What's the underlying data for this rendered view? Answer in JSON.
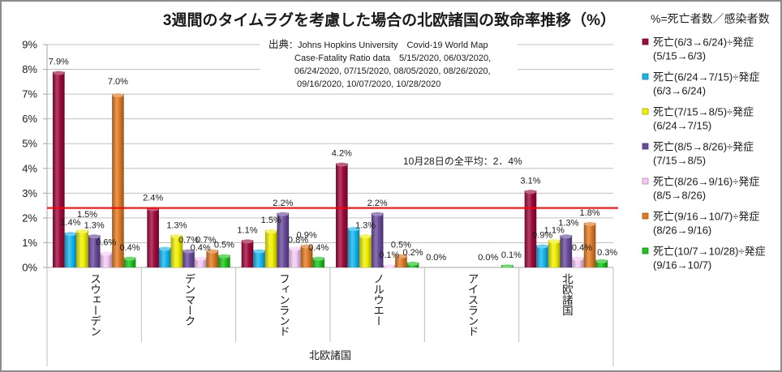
{
  "chart_data": {
    "type": "bar",
    "title": "3週間のタイムラグを考慮した場合の北欧諸国の致命率推移（%）",
    "note": "%=死亡者数／感染者数",
    "source": {
      "label": "出典",
      "lines": [
        "：Johns Hopkins University　Covid-19 World Map",
        "Case-Fatality Ratio data　5/15/2020, 06/03/2020,",
        "06/24/2020, 07/15/2020, 08/05/2020, 08/26/2020,",
        "09/16/2020, 10/07/2020, 10/28/2020"
      ]
    },
    "xlabel": "北欧諸国",
    "ylabel": "",
    "categories": [
      "スウェーデン",
      "デンマーク",
      "フィンランド",
      "ノルウエー",
      "アイスランド",
      "北欧諸国"
    ],
    "ylim": [
      0,
      9
    ],
    "yticks": [
      0,
      1,
      2,
      3,
      4,
      5,
      6,
      7,
      8,
      9
    ],
    "ytick_labels": [
      "0%",
      "1%",
      "2%",
      "3%",
      "4%",
      "5%",
      "6%",
      "7%",
      "8%",
      "9%"
    ],
    "grid": true,
    "legend_position": "right",
    "series": [
      {
        "name": "死亡(6/3→6/24)÷発症",
        "name_line2": "(5/15→6/3)",
        "color": "#9E0A3C",
        "values": [
          7.9,
          2.4,
          1.1,
          4.2,
          0.0,
          3.1
        ],
        "labels": [
          "7.9%",
          "2.4%",
          "1.1%",
          "4.2%",
          "0.0%",
          "3.1%"
        ]
      },
      {
        "name": "死亡(6/24→7/15)÷発症",
        "name_line2": "(6/3→6/24)",
        "color": "#16B6EE",
        "values": [
          1.4,
          0.8,
          0.7,
          1.6,
          null,
          0.9
        ],
        "labels": [
          "1.4%",
          null,
          null,
          null,
          null,
          "0.9%"
        ]
      },
      {
        "name": "死亡(7/15→8/5)÷発症",
        "name_line2": "(6/24→7/15)",
        "color": "#F0F000",
        "values": [
          1.5,
          1.3,
          1.5,
          1.3,
          null,
          1.1
        ],
        "labels": [
          "1.5%",
          "1.3%",
          "1.5%",
          "1.3%",
          null,
          "1.1%"
        ]
      },
      {
        "name": "死亡(8/5→8/26)÷発症",
        "name_line2": "(7/15→8/5)",
        "color": "#6A4C9C",
        "values": [
          1.3,
          0.7,
          2.2,
          2.2,
          null,
          1.3
        ],
        "labels": [
          "1.3%",
          "0.7%",
          "2.2%",
          "2.2%",
          null,
          "1.3%"
        ]
      },
      {
        "name": "死亡(8/26→9/16)÷発症",
        "name_line2": "(8/5→8/26)",
        "color": "#F4C9F4",
        "values": [
          0.6,
          0.4,
          0.8,
          0.1,
          null,
          0.4
        ],
        "labels": [
          "0.6%",
          "0.4%",
          "0.8%",
          "0.1%",
          null,
          "0.4%"
        ]
      },
      {
        "name": "死亡(9/16→10/7)÷発症",
        "name_line2": "(8/26→9/16)",
        "color": "#E07B25",
        "values": [
          7.0,
          0.7,
          0.9,
          0.5,
          0.0,
          1.8
        ],
        "labels": [
          "7.0%",
          "0.7%",
          "0.9%",
          "0.5%",
          "0.0%",
          "1.8%"
        ]
      },
      {
        "name": "死亡(10/7→10/28)÷発症",
        "name_line2": "(9/16→10/7)",
        "color": "#1CC41C",
        "values": [
          0.4,
          0.5,
          0.4,
          0.2,
          0.1,
          0.3
        ],
        "labels": [
          "0.4%",
          "0.5%",
          "0.4%",
          "0.2%",
          "0.1%",
          "0.3%"
        ]
      }
    ],
    "reference_line": {
      "value": 2.4,
      "label": "10月28日の全平均：2．4%",
      "color": "#FF0000"
    }
  }
}
